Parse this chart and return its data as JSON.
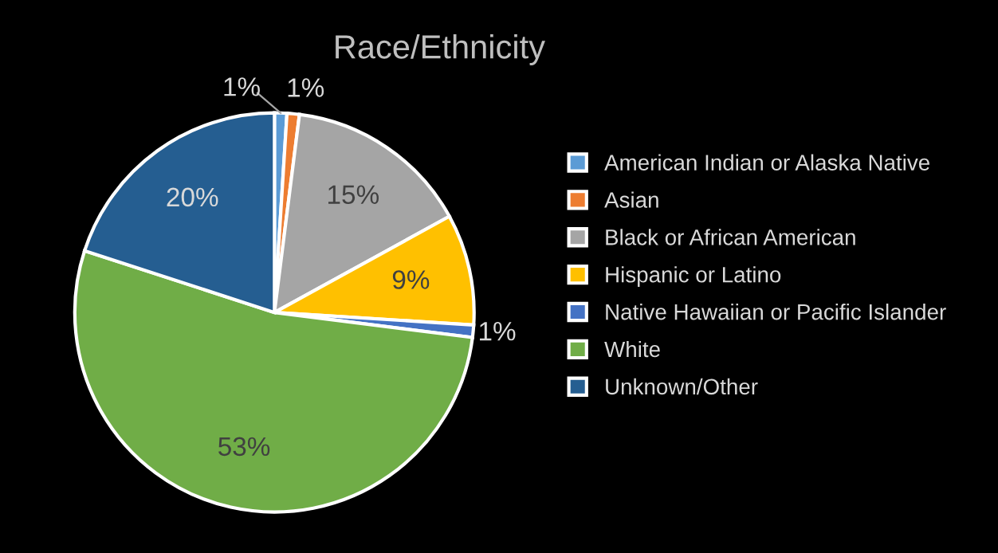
{
  "chart_data": {
    "type": "pie",
    "title": "Race/Ethnicity",
    "categories": [
      "American Indian or Alaska Native",
      "Asian",
      "Black or African American",
      "Hispanic or Latino",
      "Native Hawaiian or Pacific Islander",
      "White",
      "Unknown/Other"
    ],
    "values": [
      1,
      1,
      15,
      9,
      1,
      53,
      20
    ],
    "colors": [
      "#5b9bd5",
      "#ed7d31",
      "#a5a5a5",
      "#ffc000",
      "#4472c4",
      "#70ad47",
      "#255e91"
    ],
    "value_labels": [
      "1%",
      "1%",
      "15%",
      "9%",
      "1%",
      "53%",
      "20%"
    ],
    "legend": "right"
  }
}
